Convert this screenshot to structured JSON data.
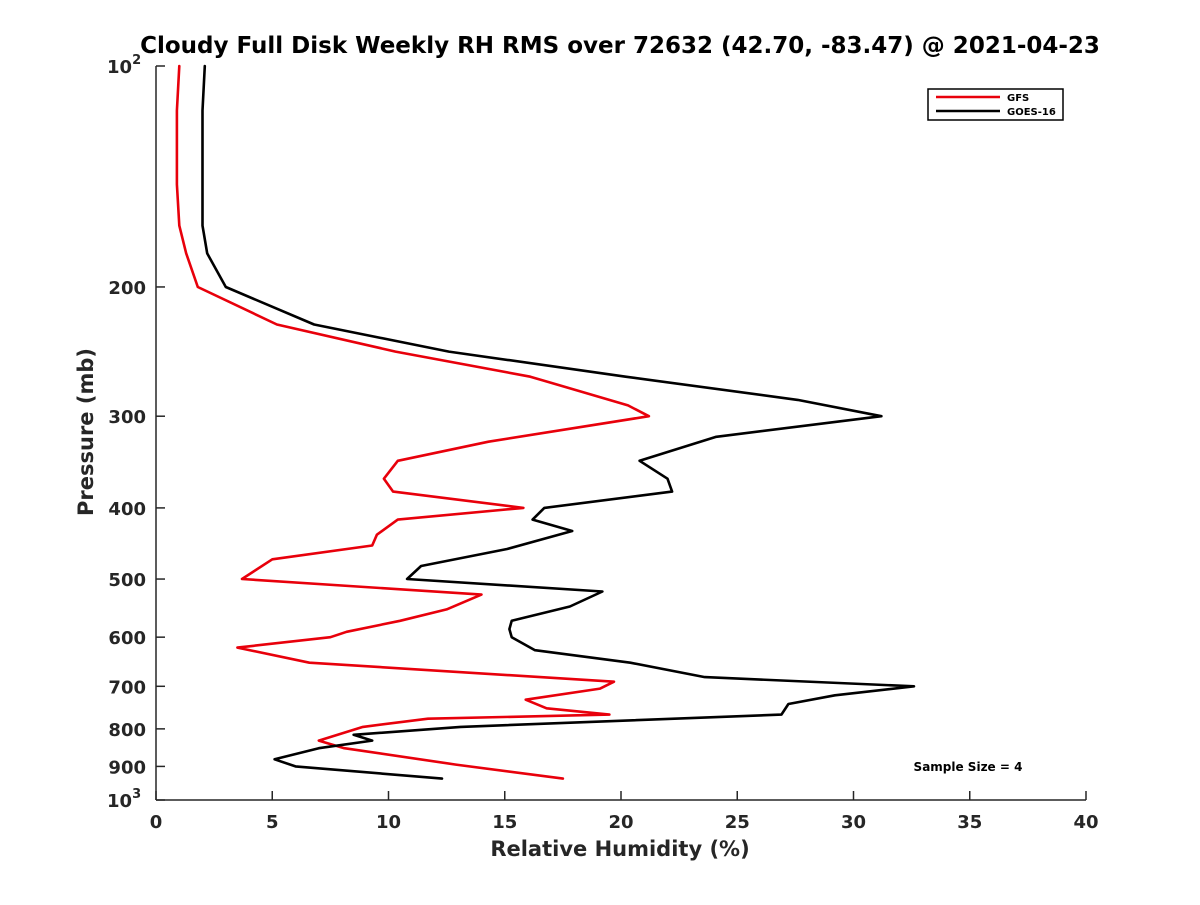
{
  "chart_data": {
    "type": "line",
    "title": "Cloudy Full Disk Weekly RH RMS over 72632 (42.70, -83.47) @ 2021-04-23",
    "xlabel": "Relative Humidity (%)",
    "ylabel": "Pressure (mb)",
    "xlim": [
      0,
      40
    ],
    "ylim": [
      100,
      1000
    ],
    "y_scale": "log",
    "y_reversed": true,
    "grid": false,
    "legend_position": "top-right",
    "x_ticks": [
      0,
      5,
      10,
      15,
      20,
      25,
      30,
      35,
      40
    ],
    "x_tick_labels": [
      "0",
      "5",
      "10",
      "15",
      "20",
      "25",
      "30",
      "35",
      "40"
    ],
    "y_ticks": [
      100,
      200,
      300,
      400,
      500,
      600,
      700,
      800,
      900,
      1000
    ],
    "y_tick_labels": [
      {
        "base": "10",
        "exp": "2"
      },
      {
        "base": "200"
      },
      {
        "base": "300"
      },
      {
        "base": "400"
      },
      {
        "base": "500"
      },
      {
        "base": "600"
      },
      {
        "base": "700"
      },
      {
        "base": "800"
      },
      {
        "base": "900"
      },
      {
        "base": "10",
        "exp": "3"
      }
    ],
    "annotation": "Sample Size = 4",
    "series": [
      {
        "name": "GFS",
        "color": "#e8000b",
        "points": [
          [
            1.0,
            100
          ],
          [
            0.9,
            115
          ],
          [
            0.9,
            130
          ],
          [
            0.9,
            145
          ],
          [
            1.0,
            165
          ],
          [
            1.3,
            180
          ],
          [
            1.8,
            200
          ],
          [
            5.2,
            225
          ],
          [
            10.3,
            245
          ],
          [
            16.1,
            265
          ],
          [
            20.3,
            290
          ],
          [
            21.2,
            300
          ],
          [
            14.3,
            325
          ],
          [
            10.4,
            345
          ],
          [
            9.8,
            365
          ],
          [
            10.2,
            380
          ],
          [
            15.8,
            400
          ],
          [
            10.4,
            415
          ],
          [
            9.5,
            435
          ],
          [
            9.3,
            450
          ],
          [
            5.0,
            470
          ],
          [
            3.7,
            500
          ],
          [
            14.0,
            525
          ],
          [
            12.5,
            550
          ],
          [
            10.5,
            570
          ],
          [
            8.2,
            590
          ],
          [
            7.5,
            600
          ],
          [
            3.5,
            620
          ],
          [
            6.6,
            650
          ],
          [
            19.7,
            690
          ],
          [
            19.1,
            705
          ],
          [
            15.9,
            730
          ],
          [
            16.8,
            750
          ],
          [
            19.5,
            765
          ],
          [
            11.7,
            775
          ],
          [
            8.9,
            795
          ],
          [
            7.0,
            830
          ],
          [
            8.1,
            850
          ],
          [
            12.9,
            895
          ],
          [
            17.5,
            935
          ]
        ]
      },
      {
        "name": "GOES-16",
        "color": "#000000",
        "points": [
          [
            2.1,
            100
          ],
          [
            2.0,
            115
          ],
          [
            2.0,
            130
          ],
          [
            2.0,
            145
          ],
          [
            2.0,
            165
          ],
          [
            2.2,
            180
          ],
          [
            3.0,
            200
          ],
          [
            6.8,
            225
          ],
          [
            12.6,
            245
          ],
          [
            20.2,
            265
          ],
          [
            27.6,
            285
          ],
          [
            31.2,
            300
          ],
          [
            24.1,
            320
          ],
          [
            20.8,
            345
          ],
          [
            22.0,
            365
          ],
          [
            22.2,
            380
          ],
          [
            16.7,
            400
          ],
          [
            16.2,
            415
          ],
          [
            17.9,
            430
          ],
          [
            15.1,
            455
          ],
          [
            11.4,
            480
          ],
          [
            10.8,
            500
          ],
          [
            19.2,
            520
          ],
          [
            17.8,
            545
          ],
          [
            15.3,
            570
          ],
          [
            15.2,
            585
          ],
          [
            15.3,
            600
          ],
          [
            16.3,
            625
          ],
          [
            20.4,
            650
          ],
          [
            23.6,
            680
          ],
          [
            32.6,
            700
          ],
          [
            29.2,
            720
          ],
          [
            27.2,
            740
          ],
          [
            26.9,
            765
          ],
          [
            13.1,
            795
          ],
          [
            8.5,
            815
          ],
          [
            9.3,
            830
          ],
          [
            7.0,
            850
          ],
          [
            5.1,
            880
          ],
          [
            6.0,
            900
          ],
          [
            12.3,
            935
          ]
        ]
      }
    ]
  }
}
